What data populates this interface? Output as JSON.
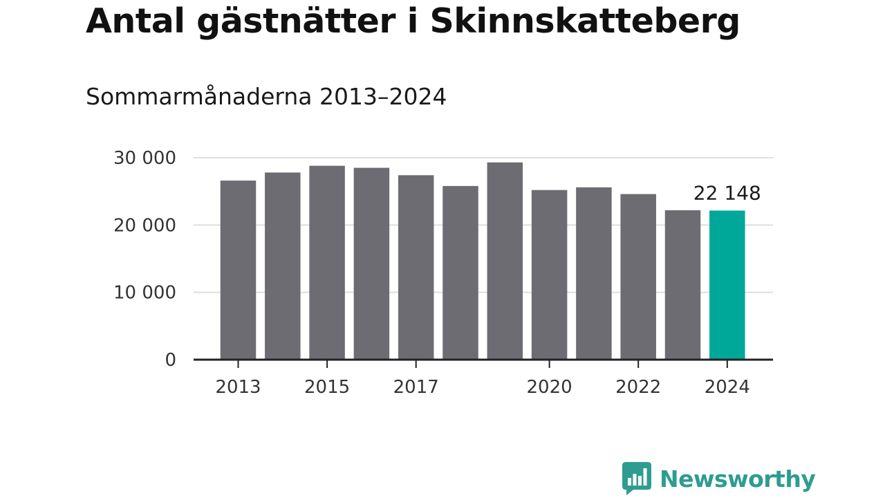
{
  "title": "Antal gästnätter i Skinnskatteberg",
  "subtitle": "Sommarmånaderna 2013–2024",
  "brand": {
    "name": "Newsworthy",
    "color": "#2e9c90",
    "icon": "bar-chart-speech-bubble-icon"
  },
  "colors": {
    "bar": "#6d6c72",
    "highlight": "#00a89a",
    "grid": "#dedede",
    "axis": "#222222"
  },
  "chart_data": {
    "type": "bar",
    "title": "Antal gästnätter i Skinnskatteberg",
    "subtitle": "Sommarmånaderna 2013–2024",
    "categories": [
      "2013",
      "2014",
      "2015",
      "2016",
      "2017",
      "2018",
      "2019",
      "2020",
      "2021",
      "2022",
      "2023",
      "2024"
    ],
    "values": [
      26600,
      27800,
      28800,
      28500,
      27400,
      25800,
      29300,
      25200,
      25600,
      24600,
      22200,
      22148
    ],
    "highlight_index": 11,
    "ylim": [
      0,
      30000
    ],
    "yticks": [
      0,
      10000,
      20000,
      30000
    ],
    "ytick_labels": [
      "0",
      "10 000",
      "20 000",
      "30 000"
    ],
    "xtick_labels": [
      "2013",
      "2015",
      "2017",
      "2020",
      "2022",
      "2024"
    ],
    "data_labels": [
      {
        "category": "2024",
        "text": "22 148"
      }
    ],
    "grid": true,
    "xlabel": "",
    "ylabel": ""
  }
}
